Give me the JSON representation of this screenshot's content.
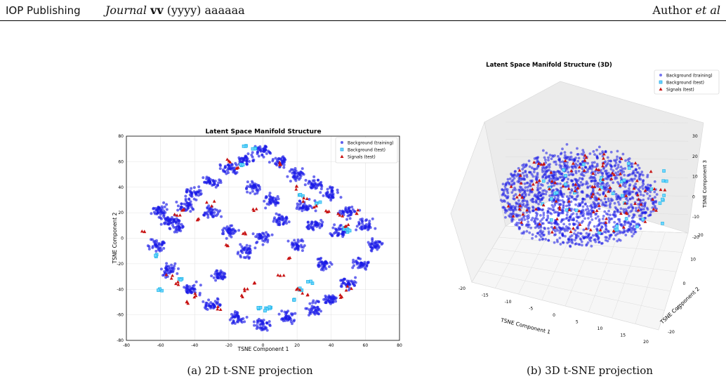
{
  "header": {
    "publisher": "IOP Publishing",
    "journal_name": "Journal",
    "volume": "vv",
    "year": "(yyyy)",
    "article": "aaaaaa",
    "author": "Author",
    "etal": "et al"
  },
  "captions": {
    "left": "(a) 2D t-SNE projection",
    "right": "(b) 3D t-SNE projection"
  },
  "colors": {
    "background_training": "#1a1ae6",
    "background_test": "#19b3e6",
    "signals_test": "#c81414"
  },
  "chart_data": [
    {
      "type": "scatter",
      "title": "Latent Space Manifold Structure",
      "xlabel": "TSNE Component 1",
      "ylabel": "TSNE Component 2",
      "xlim": [
        -80,
        80
      ],
      "ylim": [
        -80,
        80
      ],
      "xticks": [
        -80,
        -60,
        -40,
        -20,
        0,
        20,
        40,
        60,
        80
      ],
      "yticks": [
        -80,
        -60,
        -40,
        -20,
        0,
        20,
        40,
        60,
        80
      ],
      "grid": true,
      "legend_position": "top-right",
      "series": [
        {
          "name": "Background (training)",
          "marker": "circle",
          "points": [
            [
              -60,
              22
            ],
            [
              -55,
              15
            ],
            [
              -50,
              10
            ],
            [
              -45,
              25
            ],
            [
              -40,
              35
            ],
            [
              -30,
              45
            ],
            [
              -20,
              55
            ],
            [
              -10,
              62
            ],
            [
              0,
              68
            ],
            [
              10,
              60
            ],
            [
              20,
              50
            ],
            [
              30,
              42
            ],
            [
              40,
              35
            ],
            [
              50,
              20
            ],
            [
              60,
              10
            ],
            [
              65,
              -5
            ],
            [
              58,
              -20
            ],
            [
              50,
              -35
            ],
            [
              40,
              -48
            ],
            [
              30,
              -55
            ],
            [
              15,
              -62
            ],
            [
              0,
              -68
            ],
            [
              -15,
              -62
            ],
            [
              -30,
              -52
            ],
            [
              -42,
              -40
            ],
            [
              -55,
              -25
            ],
            [
              -62,
              -5
            ],
            [
              -30,
              20
            ],
            [
              -20,
              5
            ],
            [
              -10,
              -10
            ],
            [
              0,
              0
            ],
            [
              10,
              15
            ],
            [
              20,
              -5
            ],
            [
              30,
              10
            ],
            [
              35,
              -20
            ],
            [
              -25,
              -30
            ],
            [
              5,
              30
            ],
            [
              -5,
              40
            ],
            [
              25,
              25
            ],
            [
              45,
              5
            ]
          ]
        },
        {
          "name": "Background (test)",
          "marker": "square",
          "points": [
            [
              -10,
              72
            ],
            [
              -5,
              70
            ],
            [
              -12,
              58
            ],
            [
              22,
              34
            ],
            [
              32,
              28
            ],
            [
              48,
              8
            ],
            [
              50,
              6
            ],
            [
              -62,
              -14
            ],
            [
              -48,
              -32
            ],
            [
              -60,
              -40
            ],
            [
              28,
              -34
            ],
            [
              22,
              -40
            ],
            [
              18,
              -48
            ],
            [
              -2,
              -54
            ],
            [
              2,
              -56
            ],
            [
              5,
              -55
            ]
          ]
        },
        {
          "name": "Signals (test)",
          "marker": "triangle",
          "points": [
            [
              -48,
              22
            ],
            [
              -50,
              18
            ],
            [
              -38,
              15
            ],
            [
              -30,
              28
            ],
            [
              -20,
              60
            ],
            [
              -15,
              55
            ],
            [
              10,
              58
            ],
            [
              20,
              40
            ],
            [
              25,
              30
            ],
            [
              -5,
              22
            ],
            [
              30,
              25
            ],
            [
              38,
              22
            ],
            [
              45,
              18
            ],
            [
              55,
              20
            ],
            [
              50,
              10
            ],
            [
              -10,
              5
            ],
            [
              -20,
              -5
            ],
            [
              15,
              -15
            ],
            [
              10,
              -30
            ],
            [
              -5,
              -35
            ],
            [
              -10,
              -40
            ],
            [
              -12,
              -45
            ],
            [
              20,
              -40
            ],
            [
              25,
              -45
            ],
            [
              -55,
              -30
            ],
            [
              -50,
              -35
            ],
            [
              -45,
              -50
            ],
            [
              -40,
              -45
            ],
            [
              50,
              -40
            ],
            [
              45,
              -45
            ],
            [
              -70,
              5
            ],
            [
              -25,
              -55
            ]
          ]
        }
      ]
    },
    {
      "type": "scatter",
      "title": "Latent Space Manifold Structure (3D)",
      "xlabel": "TSNE Component 1",
      "ylabel": "TSNE Component 2",
      "zlabel": "TSNE Component 3",
      "xticks": [
        -20,
        -15,
        -10,
        -5,
        0,
        5,
        10,
        15,
        20
      ],
      "yticks": [
        -20,
        -10,
        0,
        10,
        20
      ],
      "zticks": [
        -20,
        -10,
        0,
        10,
        20,
        30
      ],
      "grid": true,
      "legend_position": "top-right",
      "series": [
        {
          "name": "Background (training)",
          "marker": "circle"
        },
        {
          "name": "Background (test)",
          "marker": "square"
        },
        {
          "name": "Signals (test)",
          "marker": "triangle"
        }
      ]
    }
  ]
}
